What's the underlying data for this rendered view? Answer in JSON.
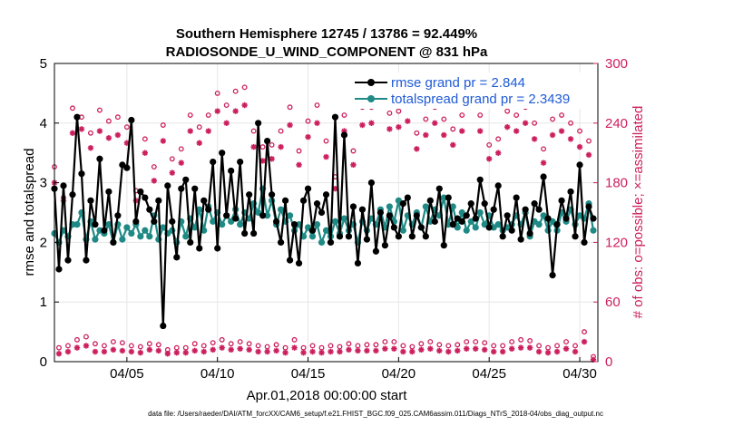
{
  "colors": {
    "rmse": "#000000",
    "spread": "#1f8a85",
    "obs": "#cc1f5e",
    "legend_text": "#1f5bd6",
    "axis": "#000000"
  },
  "chart_data": {
    "type": "line",
    "title": "Southern Hemisphere 12745 / 13786 = 92.449%",
    "subtitle": "RADIOSONDE_U_WIND_COMPONENT @ 831 hPa",
    "xlabel": "Apr.01,2018 00:00:00 start",
    "ylabel_left": "rmse and totalspread",
    "ylabel_right": "# of obs: o=possible; ×=assimilated",
    "xlim": [
      1,
      31
    ],
    "ylim_left": [
      0,
      5
    ],
    "ylim_right": [
      0,
      300
    ],
    "x_ticks": [
      5,
      10,
      15,
      20,
      25,
      30
    ],
    "x_tick_labels": [
      "04/05",
      "04/10",
      "04/15",
      "04/20",
      "04/25",
      "04/30"
    ],
    "y_left_ticks": [
      0,
      1,
      2,
      3,
      4,
      5
    ],
    "y_left_tick_labels": [
      "0",
      "1",
      "2",
      "3",
      "4",
      "5"
    ],
    "y_right_ticks": [
      0,
      60,
      120,
      180,
      240,
      300
    ],
    "y_right_tick_labels": [
      "0",
      "60",
      "120",
      "180",
      "240",
      "300"
    ],
    "legend": [
      {
        "name": "rmse grand pr = 2.844",
        "series": "rmse"
      },
      {
        "name": "totalspread grand pr = 2.3439",
        "series": "spread"
      }
    ],
    "legend_position": "top-right",
    "x": [
      1.0,
      1.25,
      1.5,
      1.75,
      2.0,
      2.25,
      2.5,
      2.75,
      3.0,
      3.25,
      3.5,
      3.75,
      4.0,
      4.25,
      4.5,
      4.75,
      5.0,
      5.25,
      5.5,
      5.75,
      6.0,
      6.25,
      6.5,
      6.75,
      7.0,
      7.25,
      7.5,
      7.75,
      8.0,
      8.25,
      8.5,
      8.75,
      9.0,
      9.25,
      9.5,
      9.75,
      10.0,
      10.25,
      10.5,
      10.75,
      11.0,
      11.25,
      11.5,
      11.75,
      12.0,
      12.25,
      12.5,
      12.75,
      13.0,
      13.25,
      13.5,
      13.75,
      14.0,
      14.25,
      14.5,
      14.75,
      15.0,
      15.25,
      15.5,
      15.75,
      16.0,
      16.25,
      16.5,
      16.75,
      17.0,
      17.25,
      17.5,
      17.75,
      18.0,
      18.25,
      18.5,
      18.75,
      19.0,
      19.25,
      19.5,
      19.75,
      20.0,
      20.25,
      20.5,
      20.75,
      21.0,
      21.25,
      21.5,
      21.75,
      22.0,
      22.25,
      22.5,
      22.75,
      23.0,
      23.25,
      23.5,
      23.75,
      24.0,
      24.25,
      24.5,
      24.75,
      25.0,
      25.25,
      25.5,
      25.75,
      26.0,
      26.25,
      26.5,
      26.75,
      27.0,
      27.25,
      27.5,
      27.75,
      28.0,
      28.25,
      28.5,
      28.75,
      29.0,
      29.25,
      29.5,
      29.75,
      30.0,
      30.25,
      30.5,
      30.75
    ],
    "series": [
      {
        "name": "rmse",
        "values": [
          2.9,
          1.55,
          2.95,
          1.7,
          2.8,
          4.1,
          3.15,
          1.7,
          2.7,
          2.3,
          3.4,
          2.2,
          2.85,
          2.0,
          2.45,
          3.3,
          3.25,
          4.05,
          2.35,
          2.85,
          2.75,
          2.55,
          2.35,
          2.7,
          0.6,
          2.95,
          2.35,
          1.75,
          2.9,
          3.05,
          2.0,
          2.9,
          1.9,
          2.7,
          2.55,
          3.35,
          1.9,
          3.5,
          2.45,
          3.2,
          2.4,
          3.35,
          2.15,
          2.8,
          2.15,
          4.0,
          2.45,
          3.7,
          2.8,
          2.35,
          2.0,
          2.7,
          1.7,
          2.3,
          1.65,
          2.7,
          2.9,
          2.2,
          2.65,
          2.5,
          2.8,
          2.0,
          4.1,
          2.1,
          3.8,
          2.1,
          2.6,
          1.65,
          2.55,
          2.05,
          3.0,
          1.85,
          2.5,
          1.95,
          2.45,
          2.25,
          2.1,
          2.65,
          2.75,
          2.1,
          2.45,
          2.25,
          2.1,
          2.7,
          2.35,
          2.9,
          1.95,
          2.75,
          2.3,
          2.4,
          2.35,
          2.45,
          2.65,
          2.4,
          3.05,
          2.65,
          2.25,
          2.55,
          2.95,
          2.1,
          2.45,
          2.2,
          2.75,
          2.05,
          2.55,
          2.15,
          2.65,
          2.55,
          3.1,
          2.4,
          1.45,
          2.3,
          2.7,
          2.4,
          2.85,
          2.1,
          3.3,
          2.0,
          2.6,
          2.4
        ]
      },
      {
        "name": "totalspread",
        "values": [
          2.15,
          2.0,
          2.2,
          2.1,
          2.3,
          2.3,
          2.5,
          2.05,
          2.35,
          2.05,
          2.2,
          2.15,
          2.3,
          2.0,
          2.3,
          2.05,
          2.25,
          2.15,
          2.3,
          2.1,
          2.2,
          2.1,
          2.45,
          2.05,
          2.25,
          2.15,
          2.2,
          2.0,
          2.35,
          2.1,
          2.4,
          2.25,
          2.55,
          2.2,
          2.6,
          2.35,
          2.5,
          2.3,
          2.45,
          2.35,
          2.55,
          2.3,
          2.5,
          2.4,
          2.65,
          2.5,
          2.9,
          2.45,
          2.7,
          2.3,
          2.55,
          2.35,
          2.45,
          2.2,
          2.3,
          2.1,
          2.25,
          2.1,
          2.3,
          2.0,
          2.2,
          2.1,
          2.35,
          2.15,
          2.4,
          2.2,
          2.3,
          2.0,
          2.35,
          2.2,
          2.4,
          2.3,
          2.55,
          2.25,
          2.6,
          2.35,
          2.7,
          2.2,
          2.45,
          2.3,
          2.5,
          2.25,
          2.6,
          2.35,
          2.55,
          2.45,
          2.75,
          2.3,
          2.6,
          2.25,
          2.5,
          2.2,
          2.35,
          2.25,
          2.5,
          2.3,
          2.45,
          2.25,
          2.3,
          2.2,
          2.25,
          2.3,
          2.45,
          2.3,
          2.5,
          2.1,
          2.35,
          2.3,
          2.45,
          2.2,
          2.35,
          2.2,
          2.5,
          2.35,
          2.55,
          2.3,
          2.45,
          2.4,
          2.65,
          2.2
        ]
      },
      {
        "name": "obs_possible",
        "values": [
          196,
          14,
          165,
          16,
          255,
          22,
          246,
          25,
          230,
          18,
          253,
          16,
          242,
          20,
          246,
          19,
          236,
          16,
          172,
          15,
          224,
          18,
          196,
          17,
          238,
          12,
          204,
          14,
          214,
          14,
          248,
          18,
          236,
          16,
          248,
          19,
          270,
          22,
          258,
          18,
          272,
          20,
          276,
          18,
          232,
          16,
          216,
          15,
          218,
          17,
          232,
          14,
          256,
          22,
          212,
          14,
          242,
          16,
          258,
          14,
          222,
          16,
          186,
          15,
          248,
          18,
          212,
          16,
          256,
          17,
          256,
          17,
          282,
          20,
          250,
          20,
          252,
          16,
          260,
          15,
          230,
          18,
          244,
          20,
          256,
          17,
          244,
          16,
          234,
          17,
          248,
          20,
          276,
          20,
          248,
          19,
          218,
          16,
          224,
          16,
          252,
          20,
          248,
          22,
          256,
          21,
          240,
          16,
          214,
          14,
          244,
          16,
          248,
          20,
          240,
          16,
          232,
          30,
          222,
          5
        ]
      },
      {
        "name": "obs_assimilated",
        "values": [
          180,
          8,
          162,
          10,
          230,
          14,
          234,
          16,
          215,
          10,
          232,
          10,
          225,
          12,
          228,
          11,
          220,
          10,
          162,
          9,
          210,
          12,
          182,
          11,
          222,
          8,
          190,
          9,
          200,
          9,
          232,
          11,
          220,
          10,
          232,
          12,
          252,
          14,
          240,
          12,
          252,
          13,
          258,
          12,
          216,
          10,
          202,
          10,
          204,
          11,
          216,
          9,
          238,
          14,
          198,
          9,
          226,
          10,
          240,
          9,
          206,
          10,
          174,
          10,
          232,
          12,
          198,
          11,
          238,
          11,
          240,
          11,
          262,
          13,
          234,
          13,
          236,
          10,
          242,
          10,
          214,
          12,
          228,
          13,
          240,
          11,
          228,
          10,
          218,
          11,
          232,
          13,
          258,
          13,
          232,
          12,
          204,
          10,
          210,
          10,
          236,
          13,
          232,
          14,
          240,
          14,
          224,
          10,
          200,
          9,
          228,
          10,
          232,
          13,
          224,
          10,
          216,
          20,
          208,
          2
        ]
      }
    ]
  },
  "footer": {
    "text": "data file: /Users/raeder/DAI/ATM_forcXX/CAM6_setup/f.e21.FHIST_BGC.f09_025.CAM6assim.011/Diags_NTrS_2018-04/obs_diag_output.nc"
  }
}
